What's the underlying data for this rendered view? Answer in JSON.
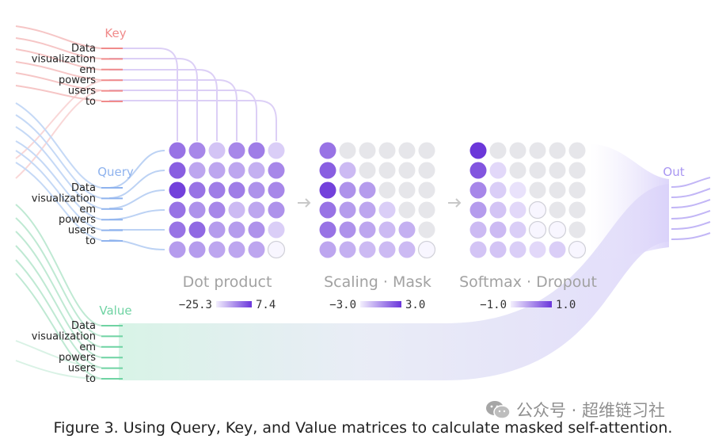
{
  "groups": {
    "key": {
      "title": "Key",
      "color": "#f08b8b"
    },
    "query": {
      "title": "Query",
      "color": "#8fb3ee"
    },
    "value": {
      "title": "Value",
      "color": "#6fd3a3"
    },
    "out": {
      "title": "Out",
      "color": "#a996f2"
    }
  },
  "tokens": [
    "Data",
    "visualization",
    "em",
    "powers",
    "users",
    "to"
  ],
  "stages": [
    {
      "title": "Dot product",
      "scale_min": "−25.3",
      "scale_max": "7.4",
      "grid": [
        [
          0.65,
          0.55,
          0.25,
          0.55,
          0.6,
          0.2
        ],
        [
          0.75,
          0.4,
          0.4,
          0.4,
          0.35,
          0.55
        ],
        [
          0.9,
          0.65,
          0.6,
          0.6,
          0.5,
          0.55
        ],
        [
          0.65,
          0.5,
          0.55,
          0.3,
          0.4,
          0.5
        ],
        [
          0.65,
          0.7,
          0.45,
          0.45,
          0.5,
          0.2
        ],
        [
          0.45,
          0.45,
          0.4,
          0.4,
          0.4,
          0.0
        ]
      ]
    },
    {
      "title": "Scaling · Mask",
      "scale_min": "−3.0",
      "scale_max": "3.0",
      "grid": [
        [
          0.65,
          -1,
          -1,
          -1,
          -1,
          -1
        ],
        [
          0.75,
          0.3,
          -1,
          -1,
          -1,
          -1
        ],
        [
          0.9,
          0.5,
          0.45,
          -1,
          -1,
          -1
        ],
        [
          0.65,
          0.45,
          0.4,
          0.2,
          -1,
          -1
        ],
        [
          0.65,
          0.5,
          0.4,
          0.3,
          0.35,
          -1
        ],
        [
          0.4,
          0.35,
          0.3,
          0.3,
          0.3,
          0.0
        ]
      ]
    },
    {
      "title": "Softmax · Dropout",
      "scale_min": "−1.0",
      "scale_max": "1.0",
      "grid": [
        [
          0.95,
          -1,
          -1,
          -1,
          -1,
          -1
        ],
        [
          0.8,
          0.15,
          -1,
          -1,
          -1,
          -1
        ],
        [
          0.55,
          0.2,
          0.1,
          -1,
          -1,
          -1
        ],
        [
          0.45,
          0.25,
          0.15,
          0.0,
          -1,
          -1
        ],
        [
          0.3,
          0.3,
          0.2,
          0.0,
          0.0,
          -1
        ],
        [
          0.25,
          0.25,
          0.2,
          0.15,
          0.2,
          0.0
        ]
      ]
    }
  ],
  "caption": "Figure 3. Using Query, Key, and Value matrices to calculate masked self-attention.",
  "watermark": {
    "text": "公众号 · 超维链习社",
    "icon": "wechat-icon"
  }
}
